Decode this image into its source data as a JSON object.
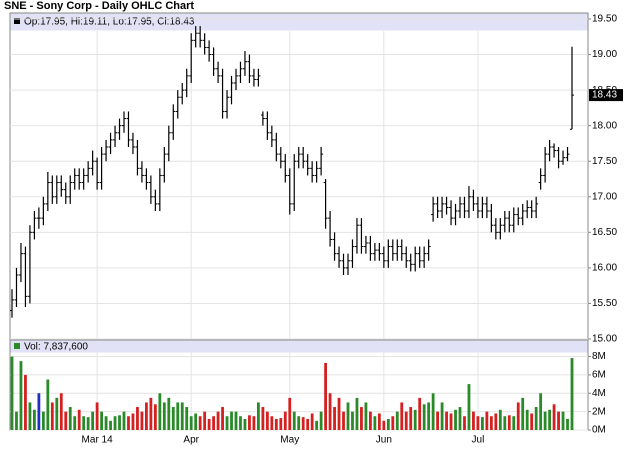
{
  "chart_data": [
    {
      "type": "ohlc",
      "title": "SNE - Sony Corp - Daily OHLC Chart",
      "legend": "Op:17.95, Hi:19.11, Lo:17.95, Cl:18.43",
      "color": "#000000",
      "open": [
        15.4,
        15.55,
        15.9,
        16.2,
        15.6,
        16.5,
        16.7,
        16.7,
        16.9,
        17.2,
        17.0,
        17.2,
        17.1,
        17.0,
        17.2,
        17.3,
        17.2,
        17.3,
        17.4,
        17.5,
        17.2,
        17.6,
        17.7,
        17.8,
        17.9,
        18.0,
        18.1,
        17.8,
        17.7,
        17.4,
        17.3,
        17.2,
        17.0,
        16.9,
        17.3,
        17.6,
        17.9,
        18.2,
        18.4,
        18.5,
        18.7,
        19.2,
        19.3,
        19.2,
        19.1,
        19.0,
        18.8,
        18.7,
        18.2,
        18.4,
        18.6,
        18.7,
        18.8,
        18.9,
        18.7,
        18.65,
        18.15,
        18.1,
        17.9,
        17.8,
        17.6,
        17.5,
        17.3,
        16.9,
        17.5,
        17.6,
        17.5,
        17.4,
        17.3,
        17.4,
        17.2,
        16.7,
        16.4,
        16.2,
        16.1,
        16.0,
        16.1,
        16.3,
        16.6,
        16.3,
        16.35,
        16.2,
        16.25,
        16.2,
        16.1,
        16.3,
        16.2,
        16.3,
        16.2,
        16.1,
        16.05,
        16.2,
        16.1,
        16.2,
        16.75,
        16.9,
        16.8,
        16.9,
        16.85,
        16.7,
        16.8,
        16.9,
        16.8,
        17.0,
        16.9,
        16.8,
        16.9,
        16.8,
        16.6,
        16.5,
        16.6,
        16.7,
        16.6,
        16.75,
        16.7,
        16.8,
        16.85,
        16.8,
        17.2,
        17.3,
        17.6,
        17.7,
        17.65,
        17.5,
        17.55,
        17.95
      ],
      "high": [
        15.7,
        16.0,
        16.35,
        16.3,
        16.6,
        16.8,
        16.85,
        17.0,
        17.35,
        17.3,
        17.3,
        17.3,
        17.2,
        17.3,
        17.4,
        17.4,
        17.4,
        17.5,
        17.65,
        17.55,
        17.7,
        17.8,
        17.9,
        18.0,
        18.1,
        18.2,
        18.2,
        17.9,
        17.8,
        17.5,
        17.4,
        17.3,
        17.1,
        17.4,
        17.7,
        18.0,
        18.3,
        18.5,
        18.6,
        18.8,
        19.3,
        19.4,
        19.4,
        19.3,
        19.2,
        19.1,
        18.9,
        18.8,
        18.5,
        18.7,
        18.8,
        18.9,
        19.05,
        19.0,
        18.8,
        18.8,
        18.2,
        18.2,
        18.0,
        17.9,
        17.7,
        17.6,
        17.4,
        17.6,
        17.7,
        17.7,
        17.6,
        17.5,
        17.5,
        17.7,
        17.25,
        16.8,
        16.5,
        16.3,
        16.2,
        16.2,
        16.4,
        16.7,
        16.7,
        16.45,
        16.45,
        16.35,
        16.35,
        16.3,
        16.4,
        16.4,
        16.4,
        16.4,
        16.3,
        16.2,
        16.3,
        16.3,
        16.3,
        16.4,
        17.0,
        17.0,
        17.0,
        17.0,
        16.95,
        16.9,
        17.0,
        17.0,
        17.15,
        17.1,
        17.0,
        17.0,
        17.0,
        16.9,
        16.7,
        16.7,
        16.8,
        16.8,
        16.85,
        16.85,
        16.9,
        16.95,
        16.95,
        17.0,
        17.4,
        17.7,
        17.8,
        17.75,
        17.7,
        17.65,
        17.7,
        19.11
      ],
      "low": [
        15.3,
        15.45,
        15.8,
        15.45,
        15.5,
        16.4,
        16.55,
        16.6,
        16.8,
        16.9,
        16.9,
        17.0,
        16.9,
        16.9,
        17.1,
        17.1,
        17.1,
        17.2,
        17.3,
        17.1,
        17.1,
        17.5,
        17.6,
        17.7,
        17.8,
        17.9,
        17.7,
        17.6,
        17.3,
        17.2,
        17.1,
        16.9,
        16.8,
        16.8,
        17.2,
        17.5,
        17.8,
        18.1,
        18.3,
        18.4,
        18.6,
        19.1,
        19.1,
        19.0,
        18.9,
        18.7,
        18.6,
        18.1,
        18.1,
        18.3,
        18.5,
        18.6,
        18.7,
        18.6,
        18.55,
        18.55,
        18.0,
        17.8,
        17.7,
        17.5,
        17.4,
        17.2,
        16.75,
        16.8,
        17.4,
        17.4,
        17.3,
        17.2,
        17.2,
        17.3,
        16.55,
        16.3,
        16.1,
        16.0,
        15.9,
        15.9,
        16.0,
        16.2,
        16.2,
        16.2,
        16.1,
        16.1,
        16.1,
        16.0,
        16.0,
        16.1,
        16.1,
        16.1,
        16.0,
        15.95,
        15.95,
        16.0,
        16.0,
        16.1,
        16.65,
        16.7,
        16.7,
        16.75,
        16.6,
        16.6,
        16.7,
        16.7,
        16.7,
        16.8,
        16.7,
        16.7,
        16.7,
        16.5,
        16.4,
        16.4,
        16.5,
        16.5,
        16.5,
        16.6,
        16.6,
        16.7,
        16.7,
        16.7,
        17.1,
        17.2,
        17.5,
        17.55,
        17.4,
        17.45,
        17.5,
        17.95
      ],
      "close": [
        15.55,
        15.9,
        16.2,
        15.6,
        16.5,
        16.7,
        16.7,
        16.9,
        17.2,
        17.0,
        17.2,
        17.1,
        17.0,
        17.2,
        17.3,
        17.2,
        17.3,
        17.4,
        17.5,
        17.2,
        17.6,
        17.7,
        17.8,
        17.9,
        18.0,
        18.1,
        17.8,
        17.7,
        17.4,
        17.3,
        17.2,
        17.0,
        16.9,
        17.3,
        17.6,
        17.9,
        18.2,
        18.4,
        18.5,
        18.7,
        19.2,
        19.3,
        19.2,
        19.1,
        19.0,
        18.8,
        18.7,
        18.2,
        18.4,
        18.6,
        18.7,
        18.8,
        18.9,
        18.7,
        18.65,
        18.7,
        18.1,
        17.9,
        17.8,
        17.6,
        17.5,
        17.3,
        16.9,
        17.5,
        17.6,
        17.5,
        17.4,
        17.3,
        17.4,
        17.6,
        16.7,
        16.4,
        16.2,
        16.1,
        16.0,
        16.1,
        16.3,
        16.6,
        16.3,
        16.35,
        16.2,
        16.25,
        16.2,
        16.1,
        16.3,
        16.2,
        16.3,
        16.2,
        16.1,
        16.05,
        16.2,
        16.1,
        16.2,
        16.3,
        16.9,
        16.8,
        16.9,
        16.85,
        16.7,
        16.8,
        16.9,
        16.8,
        17.0,
        16.9,
        16.8,
        16.9,
        16.8,
        16.6,
        16.5,
        16.6,
        16.7,
        16.6,
        16.75,
        16.7,
        16.8,
        16.85,
        16.8,
        16.9,
        17.3,
        17.6,
        17.7,
        17.65,
        17.5,
        17.55,
        17.6,
        18.43
      ],
      "ylim": [
        15,
        19.5
      ],
      "yticks": [
        {
          "value": 15,
          "label": "15.00"
        },
        {
          "value": 15.5,
          "label": "15.50"
        },
        {
          "value": 16,
          "label": "16.00"
        },
        {
          "value": 16.5,
          "label": "16.50"
        },
        {
          "value": 17,
          "label": "17.00"
        },
        {
          "value": 17.5,
          "label": "17.50"
        },
        {
          "value": 18,
          "label": "18.00"
        },
        {
          "value": 18.5,
          "label": "18.50"
        },
        {
          "value": 19,
          "label": "19.00"
        },
        {
          "value": 19.5,
          "label": "19.50"
        }
      ],
      "grid": true
    },
    {
      "type": "bar",
      "legend": "Vol: 7,837,600",
      "up_color": "#2a8a2a",
      "down_color": "#d42020",
      "flat_color": "#2030c0",
      "categories": [
        null,
        null,
        null,
        null,
        null,
        null,
        null,
        null,
        null,
        null,
        null,
        null,
        null,
        null,
        null,
        null,
        null,
        null,
        null,
        "Mar 14",
        null,
        null,
        null,
        null,
        null,
        null,
        null,
        null,
        null,
        null,
        null,
        null,
        null,
        null,
        null,
        null,
        null,
        null,
        null,
        null,
        "Apr",
        null,
        null,
        null,
        null,
        null,
        null,
        null,
        null,
        null,
        null,
        null,
        null,
        null,
        null,
        null,
        null,
        null,
        null,
        null,
        null,
        null,
        "May",
        null,
        null,
        null,
        null,
        null,
        null,
        null,
        null,
        null,
        null,
        null,
        null,
        null,
        null,
        null,
        null,
        null,
        null,
        null,
        null,
        "Jun",
        null,
        null,
        null,
        null,
        null,
        null,
        null,
        null,
        null,
        null,
        null,
        null,
        null,
        null,
        null,
        null,
        null,
        null,
        null,
        null,
        "Jul",
        null,
        null,
        null,
        null,
        null,
        null,
        null,
        null,
        null,
        null,
        null,
        null,
        null,
        null,
        null,
        null,
        null,
        null,
        null,
        null,
        null
      ],
      "values": [
        8000000,
        2000000,
        7500000,
        6000000,
        3000000,
        2200000,
        4000000,
        2000000,
        5500000,
        3000000,
        3500000,
        4000000,
        2000000,
        2500000,
        1500000,
        2200000,
        1500000,
        1400000,
        2000000,
        3000000,
        2000000,
        1500000,
        1000000,
        1500000,
        1600000,
        2000000,
        1500000,
        1800000,
        2500000,
        2000000,
        3000000,
        3500000,
        2800000,
        4000000,
        3000000,
        3500000,
        2500000,
        3000000,
        3000000,
        2500000,
        1500000,
        1800000,
        1500000,
        2000000,
        1200000,
        1500000,
        2000000,
        2500000,
        1500000,
        2000000,
        2000000,
        1500000,
        1200000,
        1600000,
        1500000,
        3000000,
        2500000,
        2000000,
        1500000,
        1200000,
        1300000,
        2000000,
        3500000,
        2000000,
        1500000,
        1400000,
        1200000,
        1800000,
        1000000,
        2000000,
        7300000,
        4000000,
        2500000,
        3500000,
        2000000,
        3000000,
        2000000,
        3500000,
        2500000,
        3000000,
        2000000,
        1500000,
        1800000,
        1000000,
        1200000,
        1500000,
        2000000,
        3000000,
        2000000,
        2500000,
        2200000,
        3500000,
        2800000,
        3000000,
        4000000,
        2000000,
        3000000,
        2000000,
        1800000,
        2200000,
        2500000,
        1500000,
        5000000,
        2000000,
        1500000,
        1400000,
        2000000,
        1500000,
        1800000,
        2200000,
        1500000,
        1600000,
        1500000,
        3000000,
        3500000,
        2200000,
        1800000,
        2500000,
        4000000,
        2000000,
        2200000,
        2800000,
        2000000,
        2000000,
        1200000,
        7837600
      ],
      "ylim": [
        0,
        9800000
      ],
      "yticks": [
        {
          "value": 0,
          "label": "0M"
        },
        {
          "value": 2000000,
          "label": "2M"
        },
        {
          "value": 4000000,
          "label": "4M"
        },
        {
          "value": 6000000,
          "label": "6M"
        },
        {
          "value": 8000000,
          "label": "8M"
        }
      ],
      "grid": true
    }
  ]
}
